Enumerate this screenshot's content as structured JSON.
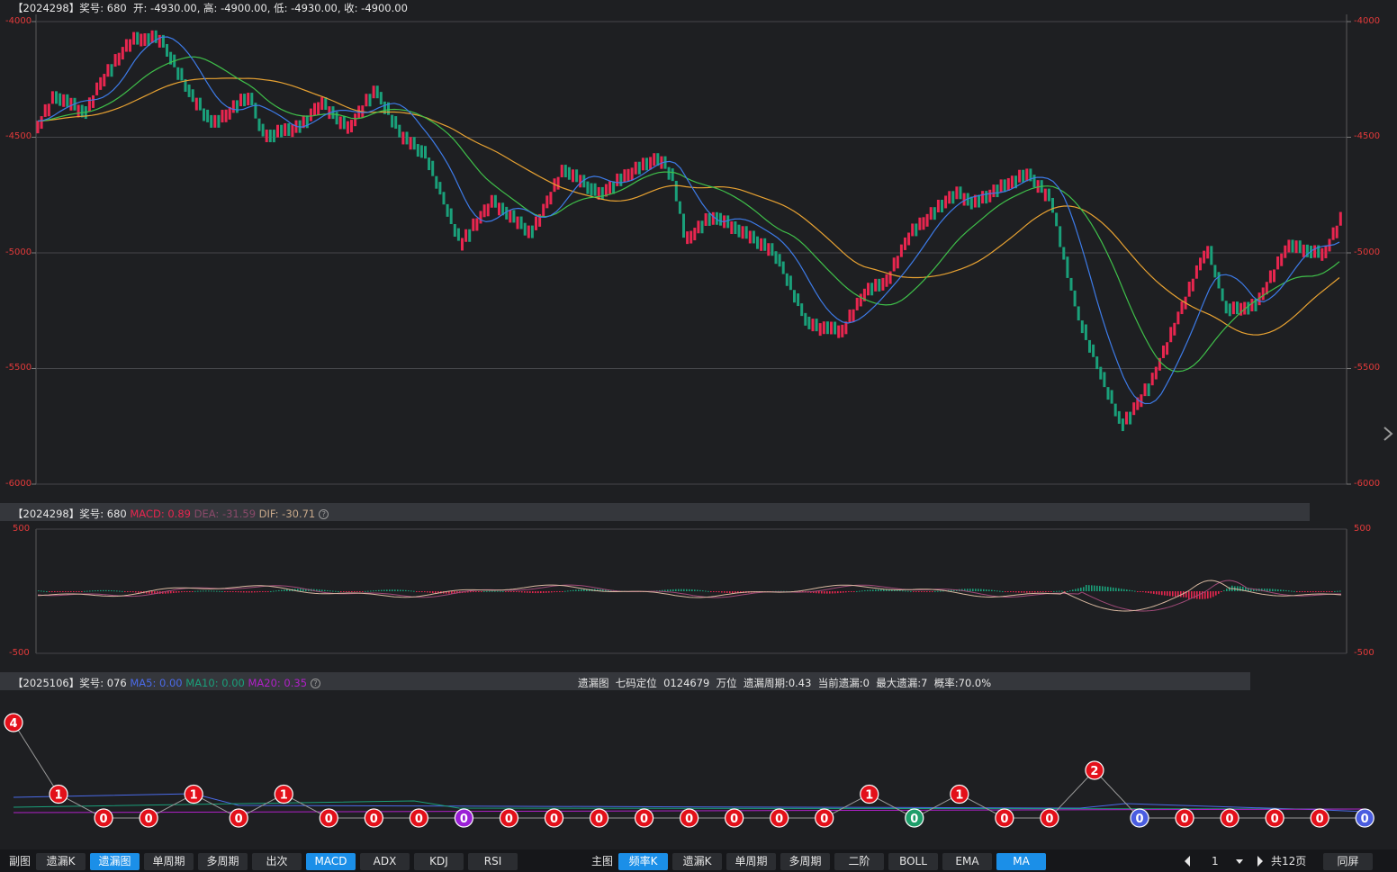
{
  "main": {
    "info": {
      "period": "【2024298】",
      "award": "奖号: 680",
      "ohlc": "开: -4930.00, 高: -4900.00, 低: -4930.00, 收: -4900.00"
    },
    "y_ticks": [
      "-4000",
      "-4500",
      "-5000",
      "-5500",
      "-6000"
    ]
  },
  "macd": {
    "info": {
      "period": "【2024298】",
      "award": "奖号: 680",
      "macd": "MACD: 0.89",
      "dea": "DEA: -31.59",
      "dif": "DIF: -30.71",
      "help": "?"
    },
    "y_ticks": [
      "500",
      "-500"
    ]
  },
  "miss": {
    "info": {
      "period": "【2025106】",
      "award": "奖号: 076",
      "ma5": "MA5: 0.00",
      "ma10": "MA10: 0.00",
      "ma20": "MA20: 0.35",
      "help": "?"
    },
    "summary": "遗漏图  七码定位  0124679  万位  遗漏周期:0.43  当前遗漏:0  最大遗漏:7  概率:70.0%",
    "points": [
      4,
      1,
      0,
      0,
      1,
      0,
      1,
      0,
      0,
      0,
      0,
      0,
      0,
      0,
      0,
      0,
      0,
      0,
      0,
      1,
      0,
      1,
      0,
      0,
      2,
      0,
      0,
      0,
      0,
      0,
      0
    ],
    "point_colors": {
      "0": "#e3101a",
      "special_purple": "#9b20d6",
      "special_green": "#1e9e6a",
      "special_blue": "#4a5de0"
    },
    "special": {
      "10": "purple",
      "20": "green",
      "25": "blue",
      "30": "blue"
    }
  },
  "toolbar": {
    "left_label": "副图",
    "left_tabs": [
      "遗漏K",
      "遗漏图",
      "单周期",
      "多周期",
      "出次",
      "MACD",
      "ADX",
      "KDJ",
      "RSI"
    ],
    "left_active": [
      "遗漏图",
      "MACD"
    ],
    "right_label": "主图",
    "right_tabs": [
      "频率K",
      "遗漏K",
      "单周期",
      "多周期",
      "二阶",
      "BOLL",
      "EMA",
      "MA"
    ],
    "right_active": [
      "频率K",
      "MA"
    ],
    "page_value": "1",
    "page_total": "共12页",
    "sync": "同屏"
  },
  "colors": {
    "up": "#e8264f",
    "down": "#1aa07a",
    "ma5": "#3d7be8",
    "ma10": "#3fc04a",
    "ma20": "#e8a232",
    "macd_label": "#e8264f",
    "dea_label": "#8a4a6a",
    "dif_label": "#c8a98a",
    "ma5_label": "#4a6ae8",
    "ma10_label": "#1aa07a",
    "ma20_label": "#b020c8"
  }
}
